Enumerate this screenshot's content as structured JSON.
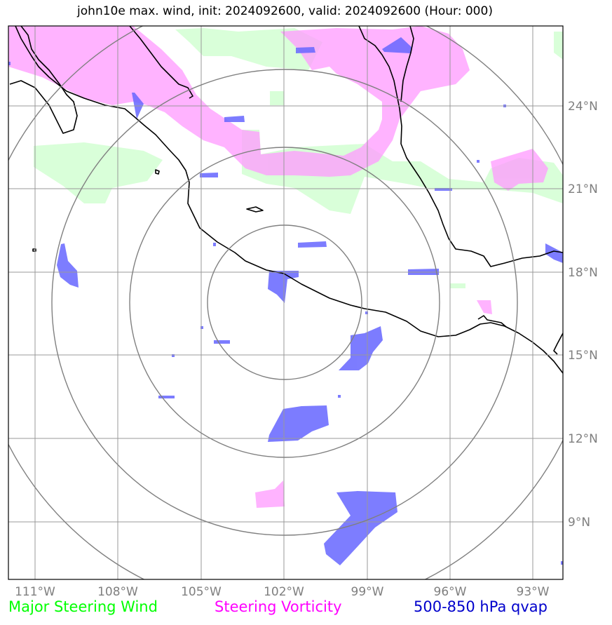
{
  "title": "john10e max. wind, init: 2024092600, valid: 2024092600 (Hour: 000)",
  "lon_labels": [
    "111°W",
    "108°W",
    "105°W",
    "102°W",
    "99°W",
    "96°W",
    "93°W"
  ],
  "lat_labels": [
    "24°N",
    "21°N",
    "18°N",
    "15°N",
    "12°N",
    "9°N"
  ],
  "legend": [
    {
      "label": "Major Steering Wind",
      "color": "#00ff00"
    },
    {
      "label": "Steering Vorticity",
      "color": "#ff00ff"
    },
    {
      "label": "500-850 hPa qvap",
      "color": "#0000cc"
    }
  ],
  "colors": {
    "wind_fill": "#ccffcc",
    "vorticity_fill": "#ff99ff",
    "qvap_fill": "#6666ff",
    "grid": "#999999",
    "range_rings": "#808080",
    "coastline": "#000000"
  }
}
